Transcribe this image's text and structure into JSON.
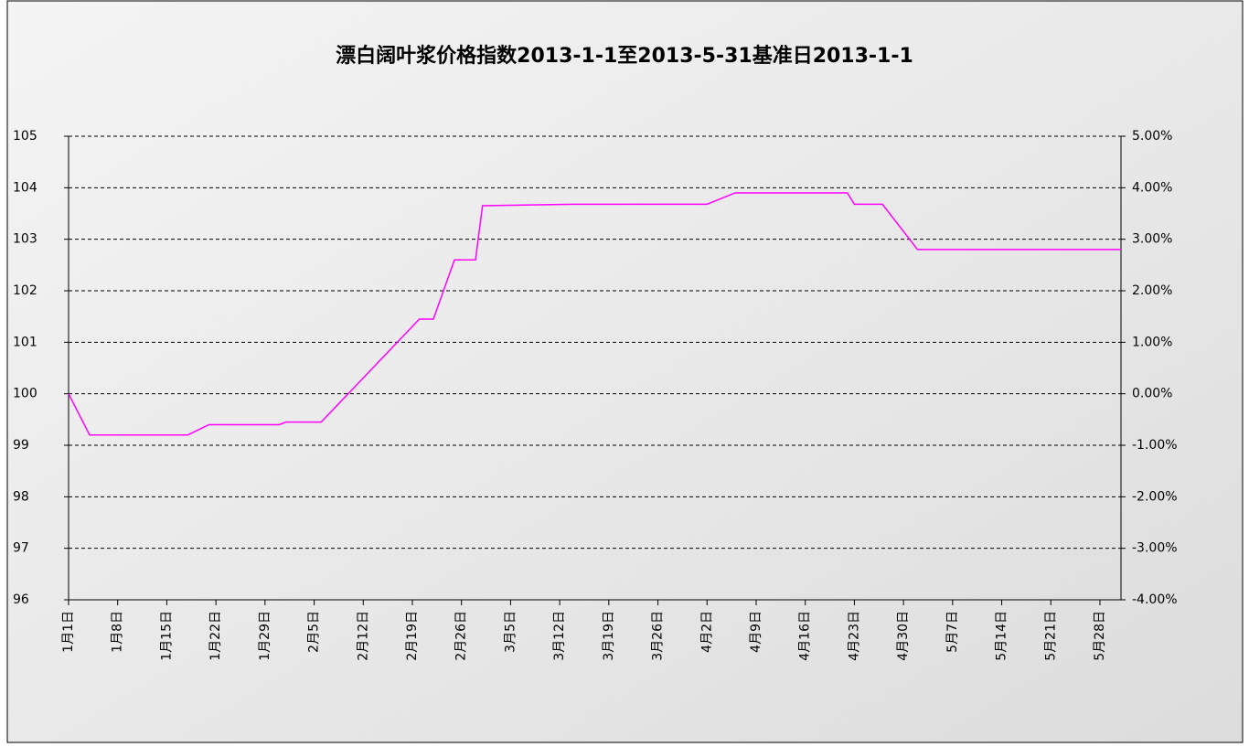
{
  "chart_data": {
    "type": "line",
    "title": "漂白阔叶浆价格指数2013-1-1至2013-5-31基准日2013-1-1",
    "x": [
      "1月1日",
      "1月4日",
      "1月18日",
      "1月21日",
      "1月31日",
      "2月1日",
      "2月6日",
      "2月20日",
      "2月22日",
      "2月25日",
      "2月28日",
      "3月1日",
      "3月14日",
      "4月2日",
      "4月6日",
      "4月22日",
      "4月23日",
      "4月27日",
      "5月2日",
      "5月31日"
    ],
    "series": [
      {
        "name": "漂白阔叶浆价格指数",
        "color": "#ff00ff",
        "values": [
          100,
          99.2,
          99.2,
          99.4,
          99.4,
          99.45,
          99.45,
          101.45,
          101.45,
          102.6,
          102.6,
          103.65,
          103.68,
          103.68,
          103.9,
          103.9,
          103.68,
          103.68,
          102.8,
          102.8
        ]
      }
    ],
    "xlim": [
      "1月1日",
      "5月31日"
    ],
    "xticks": [
      "1月1日",
      "1月8日",
      "1月15日",
      "1月22日",
      "1月29日",
      "2月5日",
      "2月12日",
      "2月19日",
      "2月26日",
      "3月5日",
      "3月12日",
      "3月19日",
      "3月26日",
      "4月2日",
      "4月9日",
      "4月16日",
      "4月23日",
      "4月30日",
      "5月7日",
      "5月14日",
      "5月21日",
      "5月28日"
    ],
    "ylim": [
      96,
      105
    ],
    "yticks": [
      96,
      97,
      98,
      99,
      100,
      101,
      102,
      103,
      104,
      105
    ],
    "y2lim": [
      -4,
      5
    ],
    "y2ticks": [
      {
        "value": -4,
        "label": "-4.00%"
      },
      {
        "value": -3,
        "label": "-3.00%"
      },
      {
        "value": -2,
        "label": "-2.00%"
      },
      {
        "value": -1,
        "label": "-1.00%"
      },
      {
        "value": 0,
        "label": "0.00%"
      },
      {
        "value": 1,
        "label": "1.00%"
      },
      {
        "value": 2,
        "label": "2.00%"
      },
      {
        "value": 3,
        "label": "3.00%"
      },
      {
        "value": 4,
        "label": "4.00%"
      },
      {
        "value": 5,
        "label": "5.00%"
      }
    ],
    "grid": true
  }
}
